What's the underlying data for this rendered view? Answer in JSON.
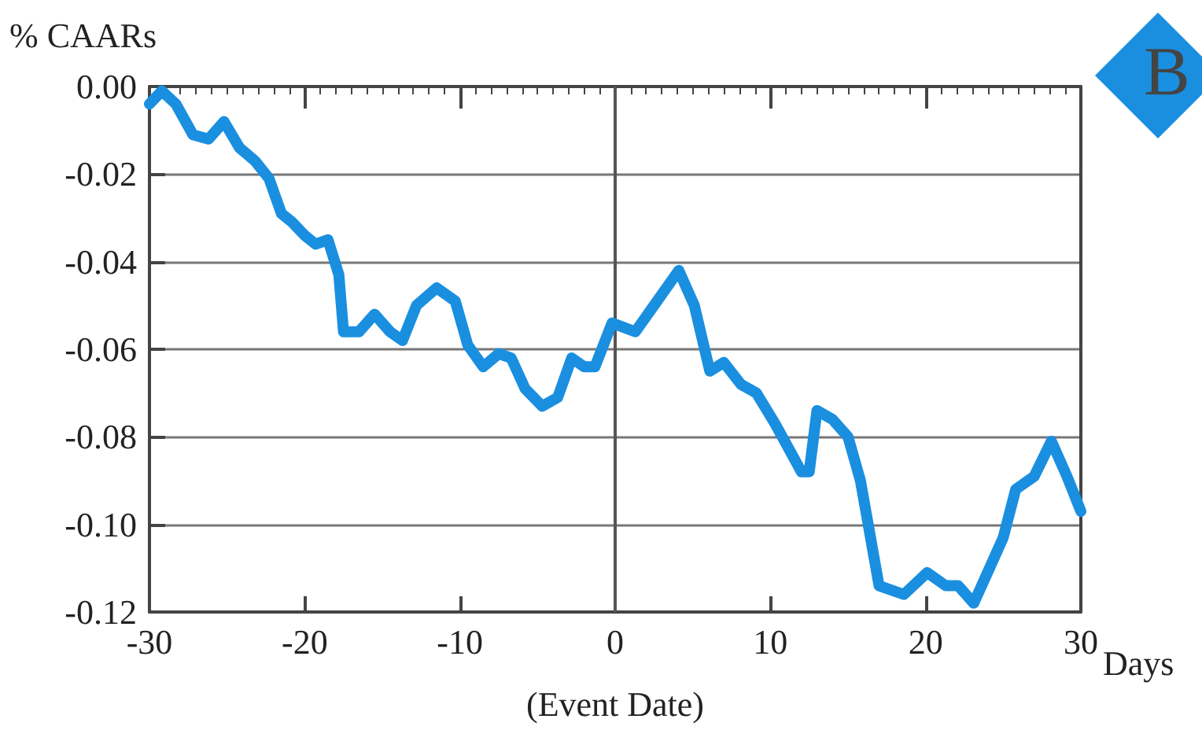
{
  "chart_data": {
    "type": "line",
    "ylabel": "% CAARs",
    "xlabel": "Days",
    "annotations": [
      "(Event Date)",
      "B"
    ],
    "x": [
      -30,
      -29.2,
      -28.3,
      -27.2,
      -26.2,
      -25.2,
      -24.2,
      -23.2,
      -22.3,
      -21.5,
      -20.8,
      -20,
      -19.3,
      -18.5,
      -17.8,
      -17.5,
      -16.5,
      -15.5,
      -14.5,
      -13.7,
      -12.8,
      -11.5,
      -10.3,
      -9.5,
      -8.5,
      -7.5,
      -6.7,
      -5.8,
      -4.7,
      -3.7,
      -2.8,
      -2,
      -1.3,
      -0.2,
      1.3,
      2.5,
      4.1,
      5.1,
      6.1,
      7,
      8.1,
      9.1,
      10.3,
      12,
      12.5,
      13,
      14,
      15,
      15.8,
      17,
      18.6,
      20.1,
      21.3,
      22.1,
      23.1,
      25,
      25.8,
      27,
      28.1,
      29.1,
      30
    ],
    "series": [
      {
        "color": "#1a8fe0",
        "values": [
          -0.004,
          -0.001,
          -0.004,
          -0.011,
          -0.012,
          -0.008,
          -0.014,
          -0.017,
          -0.021,
          -0.029,
          -0.031,
          -0.034,
          -0.036,
          -0.035,
          -0.043,
          -0.056,
          -0.056,
          -0.052,
          -0.056,
          -0.058,
          -0.05,
          -0.046,
          -0.049,
          -0.059,
          -0.064,
          -0.061,
          -0.062,
          -0.069,
          -0.073,
          -0.071,
          -0.062,
          -0.064,
          -0.064,
          -0.054,
          -0.056,
          -0.05,
          -0.042,
          -0.05,
          -0.065,
          -0.063,
          -0.068,
          -0.07,
          -0.077,
          -0.088,
          -0.088,
          -0.074,
          -0.076,
          -0.08,
          -0.09,
          -0.114,
          -0.116,
          -0.111,
          -0.114,
          -0.114,
          -0.118,
          -0.103,
          -0.092,
          -0.089,
          -0.081,
          -0.089,
          -0.097
        ]
      }
    ],
    "xlim": [
      -30,
      30
    ],
    "xticks": [
      -30,
      -20,
      -10,
      0,
      10,
      20,
      30
    ],
    "ylim": [
      -0.12,
      0
    ],
    "yticks": [
      {
        "value": -0.12,
        "label": "-0.12"
      },
      {
        "value": -0.1,
        "label": "-0.10"
      },
      {
        "value": -0.08,
        "label": "-0.08"
      },
      {
        "value": -0.06,
        "label": "-0.06"
      },
      {
        "value": -0.04,
        "label": "-0.04"
      },
      {
        "value": -0.02,
        "label": "-0.02"
      },
      {
        "value": 0,
        "label": "0.00"
      }
    ],
    "ref_lines": [
      {
        "axis": "x",
        "value": 0,
        "color": "#555555"
      }
    ],
    "grid": "y",
    "line_style": "solid"
  }
}
